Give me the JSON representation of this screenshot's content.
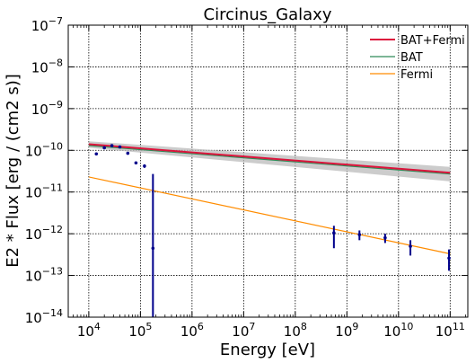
{
  "chart_data": {
    "type": "scatter",
    "title": "Circinus_Galaxy",
    "xlabel": "Energy [eV]",
    "ylabel": "E2 * Flux [erg / (cm2 s)]",
    "x_scale": "log",
    "y_scale": "log",
    "xlim": [
      4000,
      220000000000.0
    ],
    "ylim": [
      1e-14,
      1e-07
    ],
    "x_ticks": [
      {
        "value": 10000.0,
        "base": "10",
        "exp": "4"
      },
      {
        "value": 100000.0,
        "base": "10",
        "exp": "5"
      },
      {
        "value": 1000000.0,
        "base": "10",
        "exp": "6"
      },
      {
        "value": 10000000.0,
        "base": "10",
        "exp": "7"
      },
      {
        "value": 100000000.0,
        "base": "10",
        "exp": "8"
      },
      {
        "value": 1000000000.0,
        "base": "10",
        "exp": "9"
      },
      {
        "value": 10000000000.0,
        "base": "10",
        "exp": "10"
      },
      {
        "value": 100000000000.0,
        "base": "10",
        "exp": "11"
      }
    ],
    "y_ticks": [
      {
        "value": 1e-14,
        "base": "10",
        "exp": "−14"
      },
      {
        "value": 1e-13,
        "base": "10",
        "exp": "−13"
      },
      {
        "value": 1e-12,
        "base": "10",
        "exp": "−12"
      },
      {
        "value": 1e-11,
        "base": "10",
        "exp": "−11"
      },
      {
        "value": 1e-10,
        "base": "10",
        "exp": "−10"
      },
      {
        "value": 1e-09,
        "base": "10",
        "exp": "−9"
      },
      {
        "value": 1e-08,
        "base": "10",
        "exp": "−8"
      },
      {
        "value": 1e-07,
        "base": "10",
        "exp": "−7"
      }
    ],
    "grid": true,
    "legend_position": "top-right",
    "series": [
      {
        "name": "BAT+Fermi",
        "kind": "line",
        "color": "#dc143c",
        "x": [
          10000.0,
          100000000000.0
        ],
        "y": [
          1.4e-10,
          2.9e-11
        ]
      },
      {
        "name": "BAT",
        "kind": "line",
        "color": "#2e8b57",
        "x": [
          10000.0,
          100000000000.0
        ],
        "y": [
          1.3e-10,
          2.7e-11
        ]
      },
      {
        "name": "Fermi",
        "kind": "line",
        "color": "#ff8c00",
        "x": [
          10000.0,
          100000000000.0
        ],
        "y": [
          2.3e-11,
          3.3e-13
        ]
      }
    ],
    "uncertainty_band": {
      "color": "#bbbbbb",
      "x": [
        10000.0,
        100000000000.0
      ],
      "y_low": [
        1.15e-10,
        1.8e-11
      ],
      "y_high": [
        1.65e-10,
        4e-11
      ]
    },
    "data_points": {
      "color": "#00008b",
      "points": [
        {
          "x": 14000,
          "y": 8.2e-11,
          "ylo": 7.9e-11,
          "yhi": 8.5e-11
        },
        {
          "x": 20000,
          "y": 1.15e-10,
          "ylo": 1.1e-10,
          "yhi": 1.2e-10
        },
        {
          "x": 28000,
          "y": 1.3e-10,
          "ylo": 1.25e-10,
          "yhi": 1.35e-10
        },
        {
          "x": 40000,
          "y": 1.2e-10,
          "ylo": 1.15e-10,
          "yhi": 1.25e-10
        },
        {
          "x": 57000,
          "y": 8.5e-11,
          "ylo": 8e-11,
          "yhi": 9e-11
        },
        {
          "x": 82000,
          "y": 5e-11,
          "ylo": 4.7e-11,
          "yhi": 5.3e-11
        },
        {
          "x": 120000,
          "y": 4.2e-11,
          "ylo": 3.8e-11,
          "yhi": 4.6e-11
        },
        {
          "x": 175000,
          "y": 4.5e-13,
          "ylo": 1e-14,
          "yhi": 2.7e-11
        },
        {
          "x": 560000000.0,
          "y": 1.05e-12,
          "ylo": 4.5e-13,
          "yhi": 1.55e-12
        },
        {
          "x": 1750000000.0,
          "y": 9.5e-13,
          "ylo": 7e-13,
          "yhi": 1.2e-12
        },
        {
          "x": 5500000000.0,
          "y": 8e-13,
          "ylo": 6e-13,
          "yhi": 1e-12
        },
        {
          "x": 17000000000.0,
          "y": 5e-13,
          "ylo": 3e-13,
          "yhi": 7e-13
        },
        {
          "x": 95000000000.0,
          "y": 2.6e-13,
          "ylo": 1.3e-13,
          "yhi": 4.2e-13
        }
      ]
    }
  }
}
